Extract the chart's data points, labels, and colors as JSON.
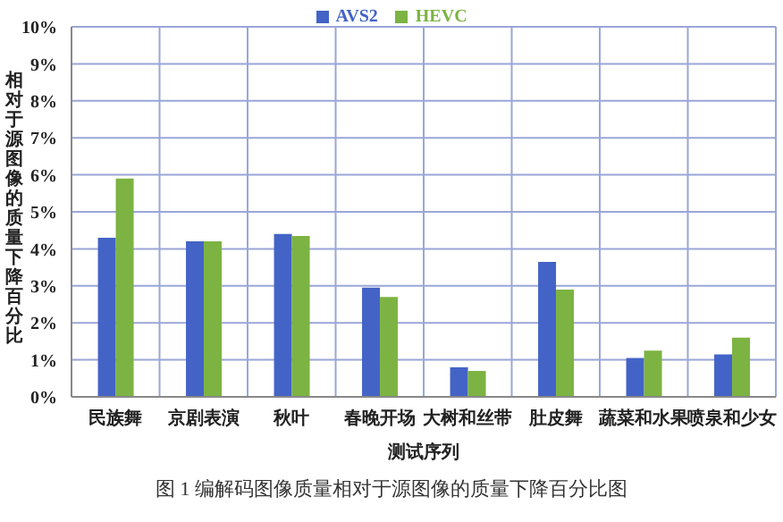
{
  "chart_data": {
    "type": "bar",
    "title": "图 1 编解码图像质量相对于源图像的质量下降百分比图",
    "xlabel": "测试序列",
    "ylabel": "相对于源图像的质量下降百分比",
    "categories": [
      "民族舞",
      "京剧表演",
      "秋叶",
      "春晚开场",
      "大树和丝带",
      "肚皮舞",
      "蔬菜和水果",
      "喷泉和少女"
    ],
    "series": [
      {
        "name": "AVS2",
        "color": "#4363c6",
        "values": [
          4.3,
          4.2,
          4.4,
          2.95,
          0.8,
          3.65,
          1.05,
          1.15
        ]
      },
      {
        "name": "HEVC",
        "color": "#7cb342",
        "values": [
          5.9,
          4.2,
          4.35,
          2.7,
          0.7,
          2.9,
          1.25,
          1.6
        ]
      }
    ],
    "ylim": [
      0,
      10
    ],
    "yticks": [
      {
        "value": 0,
        "label": "0%"
      },
      {
        "value": 1,
        "label": "1%"
      },
      {
        "value": 2,
        "label": "2%"
      },
      {
        "value": 3,
        "label": "3%"
      },
      {
        "value": 4,
        "label": "4%"
      },
      {
        "value": 5,
        "label": "5%"
      },
      {
        "value": 6,
        "label": "6%"
      },
      {
        "value": 7,
        "label": "7%"
      },
      {
        "value": 8,
        "label": "8%"
      },
      {
        "value": 9,
        "label": "9%"
      },
      {
        "value": 10,
        "label": "10%"
      }
    ],
    "grid": true,
    "legend": "top"
  }
}
